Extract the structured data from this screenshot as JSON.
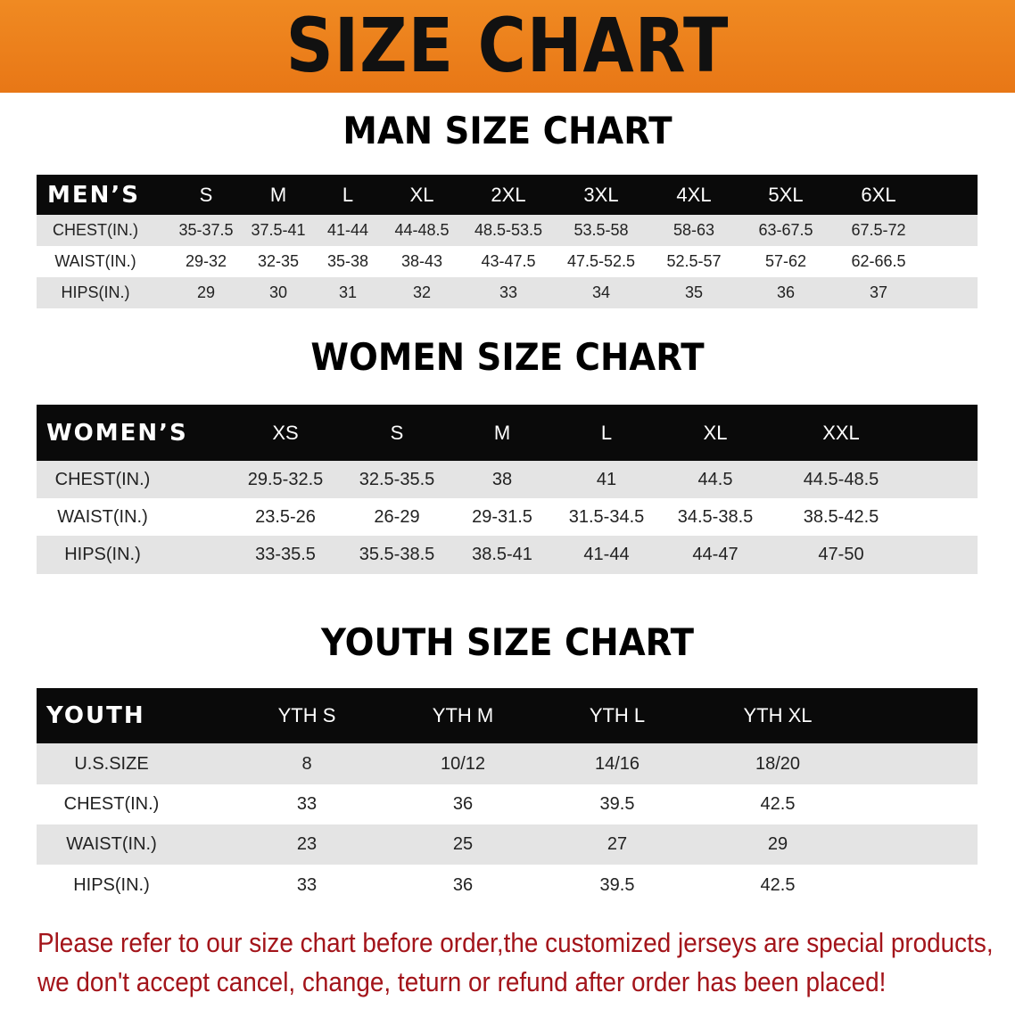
{
  "banner": {
    "title": "SIZE CHART"
  },
  "men": {
    "title": "MAN SIZE CHART",
    "header": [
      "MEN’S",
      "S",
      "M",
      "L",
      "XL",
      "2XL",
      "3XL",
      "4XL",
      "5XL",
      "6XL"
    ],
    "rows": [
      [
        "CHEST(IN.)",
        "35-37.5",
        "37.5-41",
        "41-44",
        "44-48.5",
        "48.5-53.5",
        "53.5-58",
        "58-63",
        "63-67.5",
        "67.5-72"
      ],
      [
        "WAIST(IN.)",
        "29-32",
        "32-35",
        "35-38",
        "38-43",
        "43-47.5",
        "47.5-52.5",
        "52.5-57",
        "57-62",
        "62-66.5"
      ],
      [
        "HIPS(IN.)",
        "29",
        "30",
        "31",
        "32",
        "33",
        "34",
        "35",
        "36",
        "37"
      ]
    ]
  },
  "women": {
    "title": "WOMEN SIZE CHART",
    "header": [
      "WOMEN’S",
      "XS",
      "S",
      "M",
      "L",
      "XL",
      "XXL"
    ],
    "rows": [
      [
        "CHEST(IN.)",
        "29.5-32.5",
        "32.5-35.5",
        "38",
        "41",
        "44.5",
        "44.5-48.5"
      ],
      [
        "WAIST(IN.)",
        "23.5-26",
        "26-29",
        "29-31.5",
        "31.5-34.5",
        "34.5-38.5",
        "38.5-42.5"
      ],
      [
        "HIPS(IN.)",
        "33-35.5",
        "35.5-38.5",
        "38.5-41",
        "41-44",
        "44-47",
        "47-50"
      ]
    ]
  },
  "youth": {
    "title": "YOUTH SIZE CHART",
    "header": [
      "YOUTH",
      "YTH S",
      "YTH M",
      "YTH L",
      "YTH XL"
    ],
    "rows": [
      [
        "U.S.SIZE",
        "8",
        "10/12",
        "14/16",
        "18/20"
      ],
      [
        "CHEST(IN.)",
        "33",
        "36",
        "39.5",
        "42.5"
      ],
      [
        "WAIST(IN.)",
        "23",
        "25",
        "27",
        "29"
      ],
      [
        "HIPS(IN.)",
        "33",
        "36",
        "39.5",
        "42.5"
      ]
    ]
  },
  "notice": {
    "line1": "Please refer to our size chart before order,the customized jerseys are special products,",
    "line2": "we don't accept cancel, change, teturn or refund after order has been placed!"
  },
  "colors": {
    "banner": "#e87716",
    "header_row": "#0a0a0a",
    "stripe": "#e4e4e4",
    "notice": "#a3141a"
  }
}
